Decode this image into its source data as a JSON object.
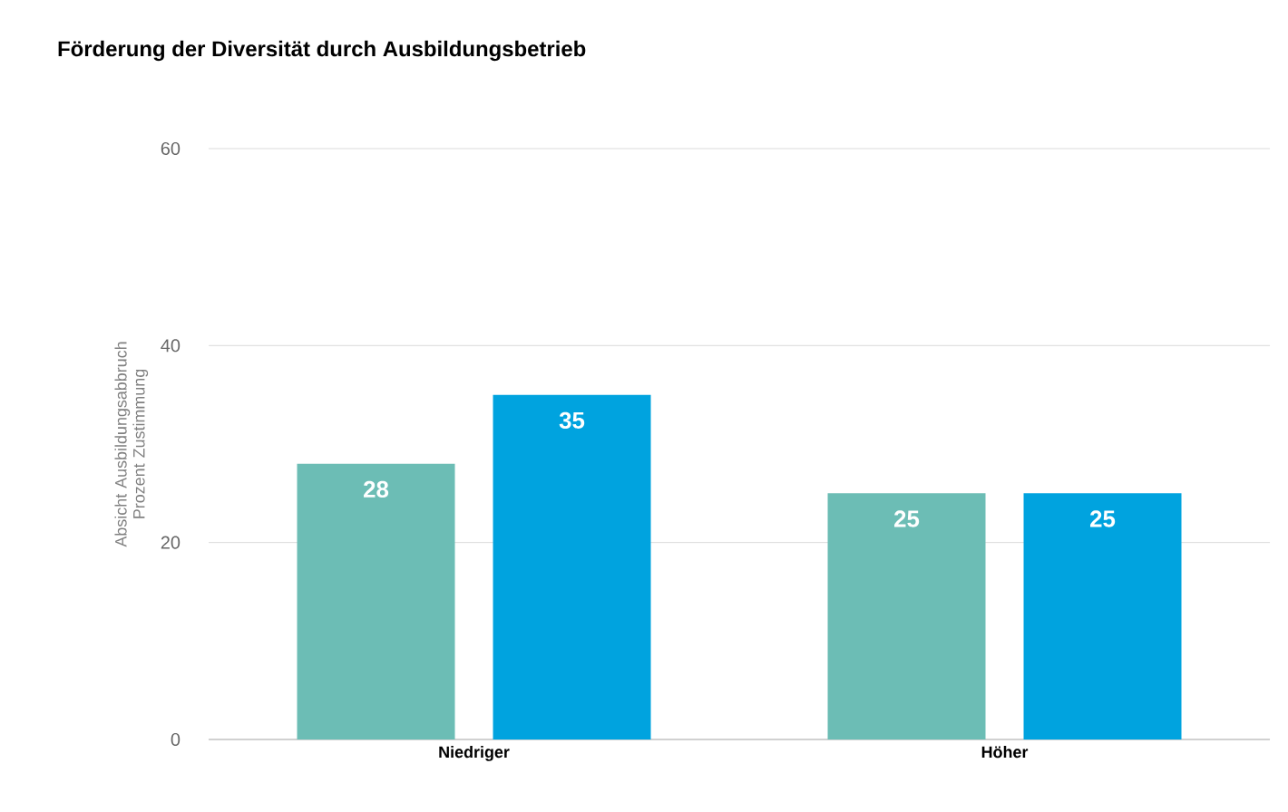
{
  "chart_data": {
    "type": "bar",
    "title": "Förderung der Diversität durch Ausbildungsbetrieb",
    "ylabel": "Absicht Ausbildungsabbruch Prozent Zustimmung",
    "categories": [
      "Niedriger",
      "Höher"
    ],
    "series": [
      {
        "color": "#6cbdb5",
        "values": [
          28,
          25
        ]
      },
      {
        "color": "#00a3df",
        "values": [
          35,
          25
        ]
      }
    ],
    "ylim": [
      0,
      60
    ],
    "yticks": [
      0,
      20,
      40,
      60
    ],
    "grid": "y",
    "data_labels": true
  }
}
